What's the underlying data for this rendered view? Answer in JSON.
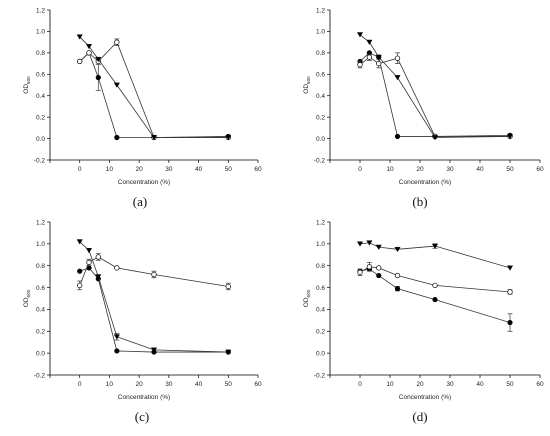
{
  "chart_data": [
    {
      "panel": "(a)",
      "type": "scatter",
      "xlabel": "Concentration (%)",
      "ylabel": "OD",
      "ylabel_sub": "600",
      "xlim": [
        -10,
        60
      ],
      "ylim": [
        -0.2,
        1.2
      ],
      "xticks": [
        "0",
        "10",
        "20",
        "30",
        "40",
        "50",
        "60"
      ],
      "yticks": [
        "-0.2",
        "0.0",
        "0.2",
        "0.4",
        "0.6",
        "0.8",
        "1.0",
        "1.2"
      ],
      "series": [
        {
          "marker": "circle-filled",
          "x": [
            0,
            3.125,
            6.25,
            12.5,
            25,
            50
          ],
          "y": [
            0.72,
            0.8,
            0.57,
            0.01,
            0.01,
            0.02
          ],
          "err": [
            0,
            0,
            0.12,
            0,
            0,
            0
          ]
        },
        {
          "marker": "circle-open",
          "x": [
            0,
            3.125,
            6.25,
            12.5,
            25,
            50
          ],
          "y": [
            0.72,
            0.8,
            0.72,
            0.9,
            0.01,
            0.01
          ],
          "err": [
            0,
            0,
            0,
            0.03,
            0,
            0
          ]
        },
        {
          "marker": "triangle-down",
          "x": [
            0,
            3.125,
            6.25,
            12.5,
            25,
            50
          ],
          "y": [
            0.95,
            0.86,
            0.74,
            0.5,
            0.01,
            0.01
          ],
          "err": [
            0,
            0,
            0,
            0,
            0,
            0
          ]
        }
      ]
    },
    {
      "panel": "(b)",
      "type": "scatter",
      "xlabel": "Concentration (%)",
      "ylabel": "OD",
      "ylabel_sub": "600",
      "xlim": [
        -10,
        60
      ],
      "ylim": [
        -0.2,
        1.2
      ],
      "xticks": [
        "0",
        "10",
        "20",
        "30",
        "40",
        "50",
        "60"
      ],
      "yticks": [
        "-0.2",
        "0.0",
        "0.2",
        "0.4",
        "0.6",
        "0.8",
        "1.0",
        "1.2"
      ],
      "series": [
        {
          "marker": "circle-filled",
          "x": [
            0,
            3.125,
            6.25,
            12.5,
            25,
            50
          ],
          "y": [
            0.72,
            0.8,
            0.76,
            0.02,
            0.02,
            0.03
          ],
          "err": [
            0,
            0,
            0,
            0,
            0,
            0
          ]
        },
        {
          "marker": "circle-open",
          "x": [
            0,
            3.125,
            6.25,
            12.5,
            25,
            50
          ],
          "y": [
            0.69,
            0.76,
            0.7,
            0.75,
            0.02,
            0.02
          ],
          "err": [
            0.03,
            0.03,
            0.04,
            0.05,
            0,
            0
          ]
        },
        {
          "marker": "triangle-down",
          "x": [
            0,
            3.125,
            6.25,
            12.5,
            25,
            50
          ],
          "y": [
            0.97,
            0.9,
            0.76,
            0.57,
            0.01,
            0.02
          ],
          "err": [
            0,
            0,
            0,
            0,
            0,
            0
          ]
        }
      ]
    },
    {
      "panel": "(c)",
      "type": "scatter",
      "xlabel": "Concentration (%)",
      "ylabel": "OD",
      "ylabel_sub": "600",
      "xlim": [
        -10,
        60
      ],
      "ylim": [
        -0.2,
        1.2
      ],
      "xticks": [
        "0",
        "10",
        "20",
        "30",
        "40",
        "50",
        "60"
      ],
      "yticks": [
        "-0.2",
        "0.0",
        "0.2",
        "0.4",
        "0.6",
        "0.8",
        "1.0",
        "1.2"
      ],
      "series": [
        {
          "marker": "circle-filled",
          "x": [
            0,
            3.125,
            6.25,
            12.5,
            25,
            50
          ],
          "y": [
            0.75,
            0.78,
            0.68,
            0.02,
            0.01,
            0.01
          ],
          "err": [
            0,
            0,
            0,
            0,
            0,
            0
          ]
        },
        {
          "marker": "circle-open",
          "x": [
            0,
            3.125,
            6.25,
            12.5,
            25,
            50
          ],
          "y": [
            0.62,
            0.83,
            0.88,
            0.78,
            0.72,
            0.61
          ],
          "err": [
            0.04,
            0.03,
            0.03,
            0,
            0.03,
            0.03
          ]
        },
        {
          "marker": "triangle-down",
          "x": [
            0,
            3.125,
            6.25,
            12.5,
            25,
            50
          ],
          "y": [
            1.02,
            0.94,
            0.7,
            0.15,
            0.03,
            0.01
          ],
          "err": [
            0,
            0,
            0,
            0.03,
            0,
            0
          ]
        }
      ]
    },
    {
      "panel": "(d)",
      "type": "scatter",
      "xlabel": "Concentration (%)",
      "ylabel": "OD",
      "ylabel_sub": "600",
      "xlim": [
        -10,
        60
      ],
      "ylim": [
        -0.2,
        1.2
      ],
      "xticks": [
        "0",
        "10",
        "20",
        "30",
        "40",
        "50",
        "60"
      ],
      "yticks": [
        "-0.2",
        "0.0",
        "0.2",
        "0.4",
        "0.6",
        "0.8",
        "1.0",
        "1.2"
      ],
      "series": [
        {
          "marker": "circle-filled",
          "x": [
            0,
            3.125,
            6.25,
            12.5,
            25,
            50
          ],
          "y": [
            0.75,
            0.77,
            0.71,
            0.59,
            0.49,
            0.28
          ],
          "err": [
            0,
            0,
            0,
            0.02,
            0,
            0.08
          ]
        },
        {
          "marker": "circle-open",
          "x": [
            0,
            3.125,
            6.25,
            12.5,
            25,
            50
          ],
          "y": [
            0.74,
            0.79,
            0.78,
            0.71,
            0.62,
            0.56
          ],
          "err": [
            0.03,
            0.04,
            0,
            0,
            0,
            0.02
          ]
        },
        {
          "marker": "triangle-down",
          "x": [
            0,
            3.125,
            6.25,
            12.5,
            25,
            50
          ],
          "y": [
            1.0,
            1.01,
            0.97,
            0.95,
            0.98,
            0.78
          ],
          "err": [
            0,
            0,
            0,
            0,
            0.02,
            0
          ]
        }
      ]
    }
  ]
}
